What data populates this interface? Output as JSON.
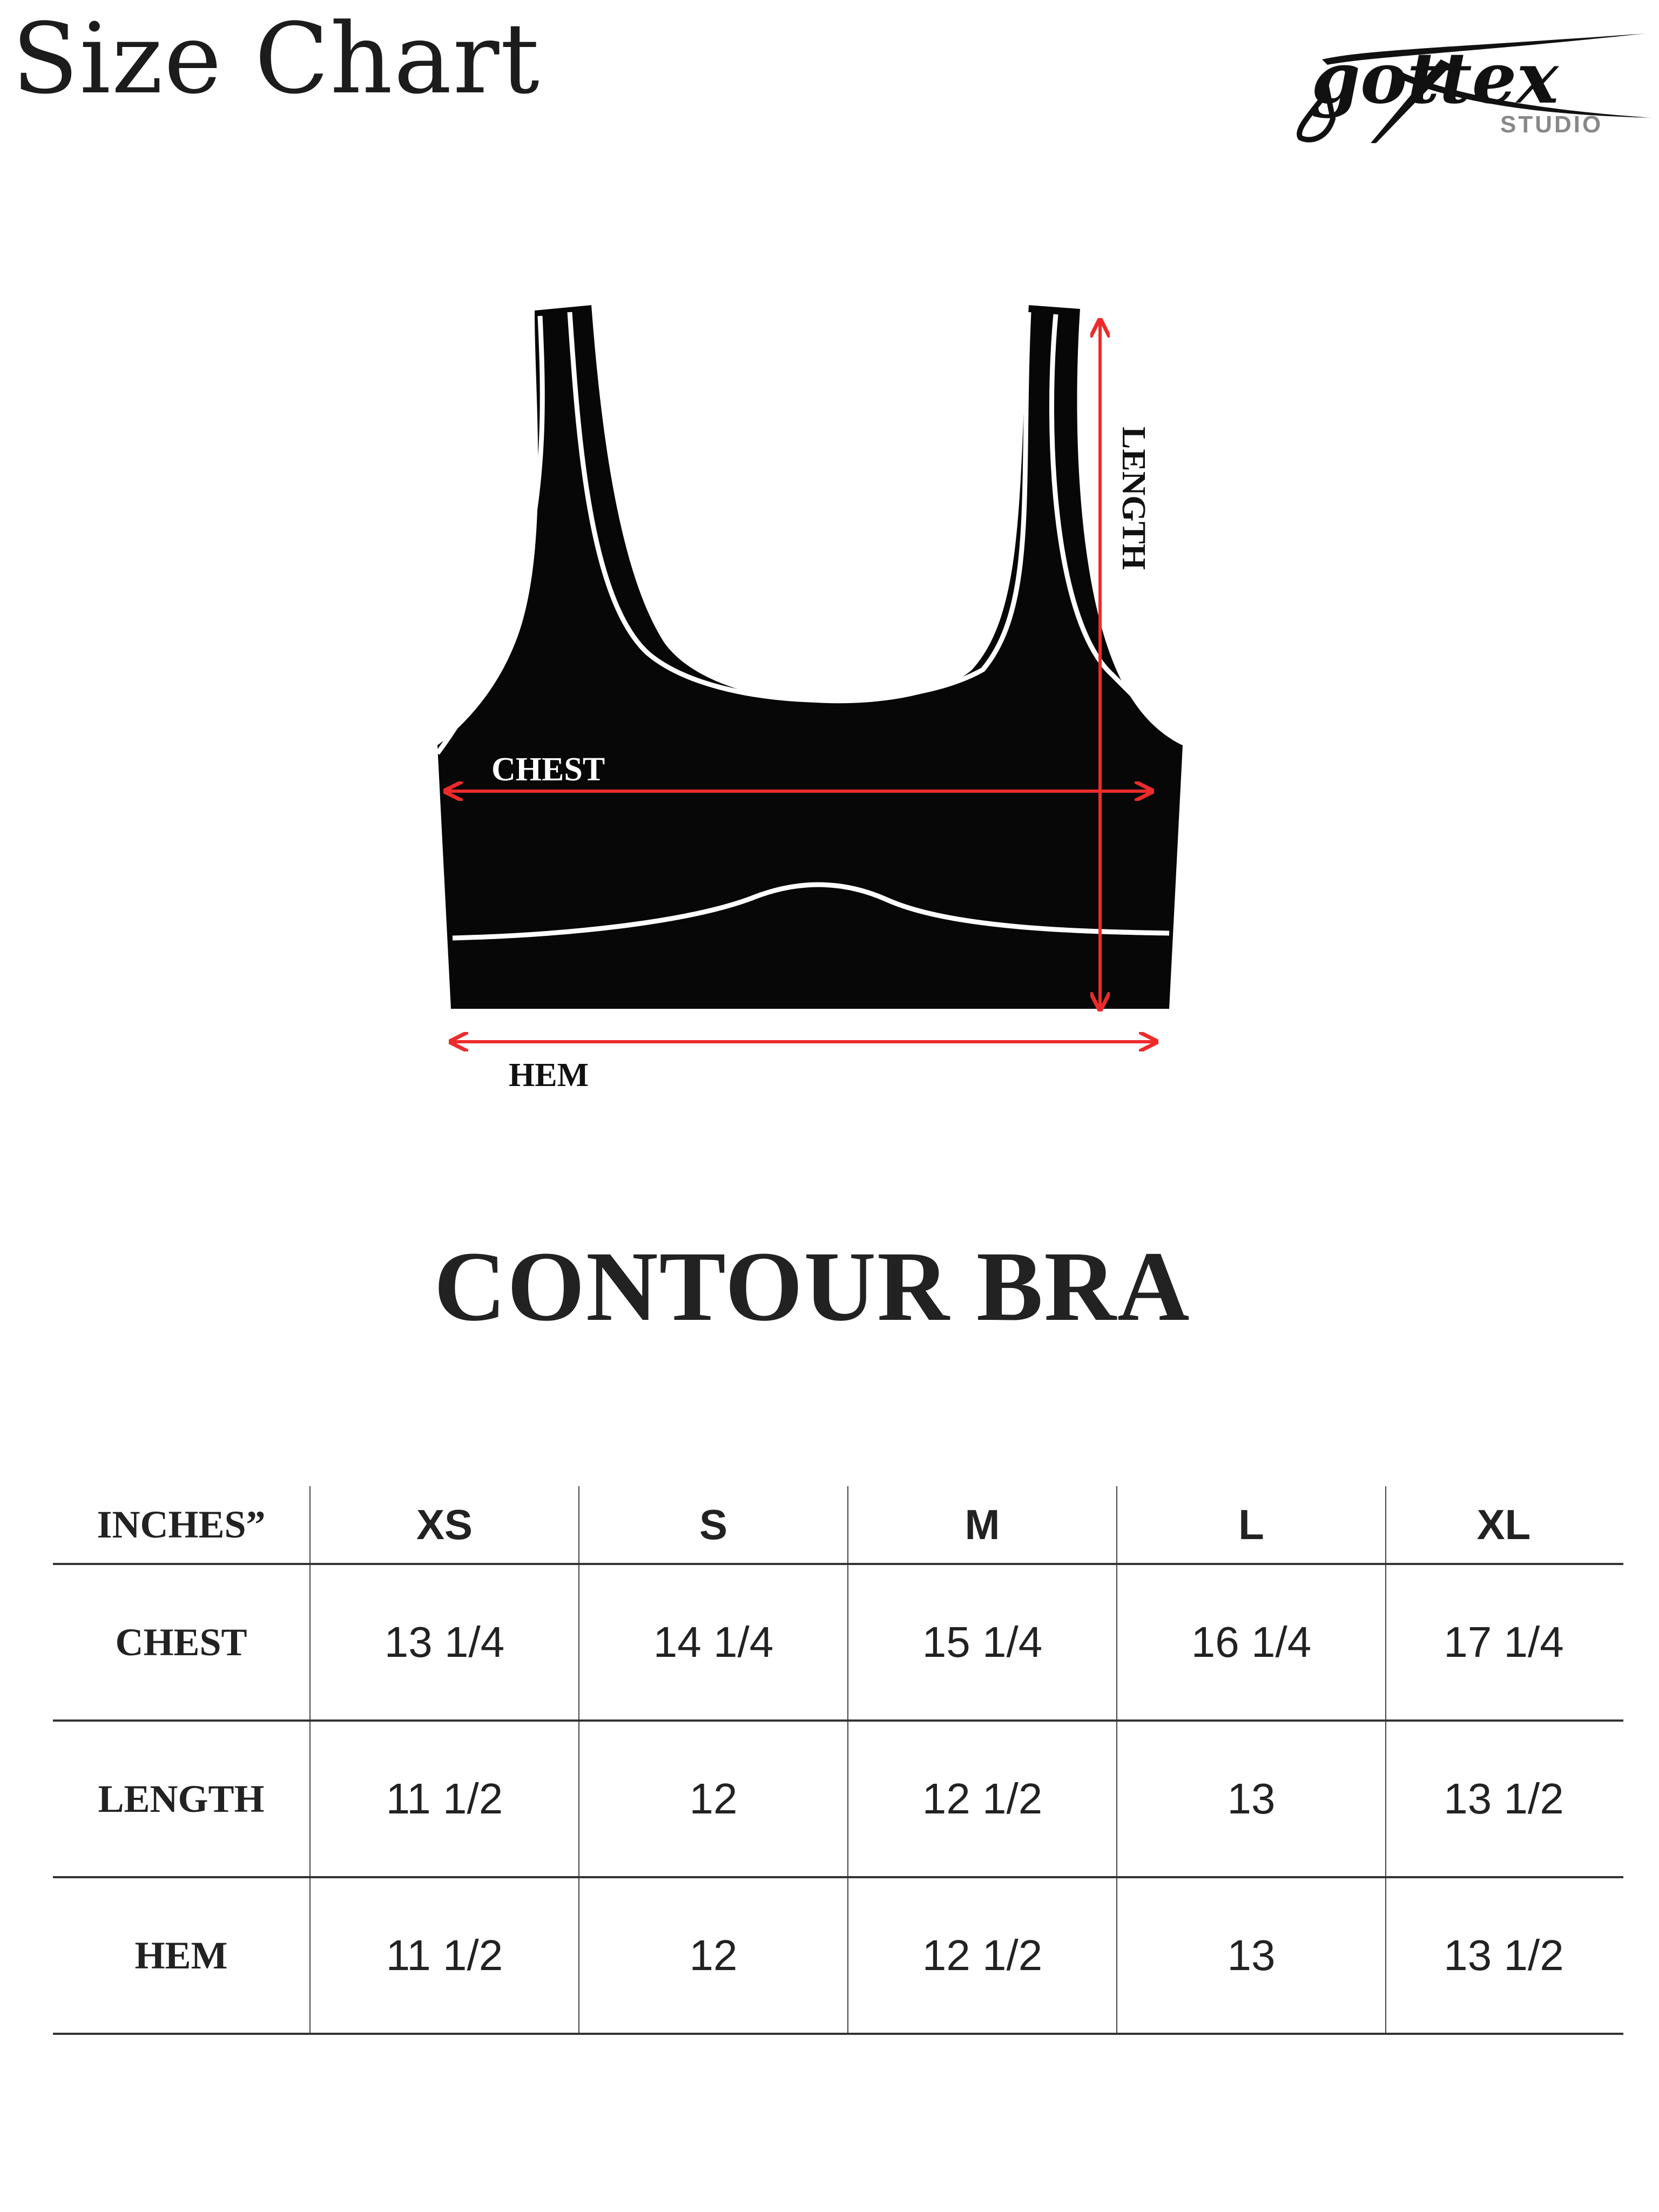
{
  "header": {
    "title": "Size Chart",
    "logo_text": "gottex",
    "logo_subtext": "STUDIO"
  },
  "figure": {
    "chest_label": "CHEST",
    "length_label": "LENGTH",
    "hem_label": "HEM",
    "arrow_color": "#ee2b2b",
    "garment_color": "#070707"
  },
  "product": {
    "name": "CONTOUR BRA"
  },
  "table": {
    "unit_header": "INCHES”",
    "sizes": [
      "XS",
      "S",
      "M",
      "L",
      "XL"
    ],
    "rows": [
      {
        "label": "CHEST",
        "values": [
          "13 1/4",
          "14 1/4",
          "15 1/4",
          "16 1/4",
          "17 1/4"
        ]
      },
      {
        "label": "LENGTH",
        "values": [
          "11 1/2",
          "12",
          "12 1/2",
          "13",
          "13 1/2"
        ]
      },
      {
        "label": "HEM",
        "values": [
          "11 1/2",
          "12",
          "12 1/2",
          "13",
          "13 1/2"
        ]
      }
    ]
  }
}
